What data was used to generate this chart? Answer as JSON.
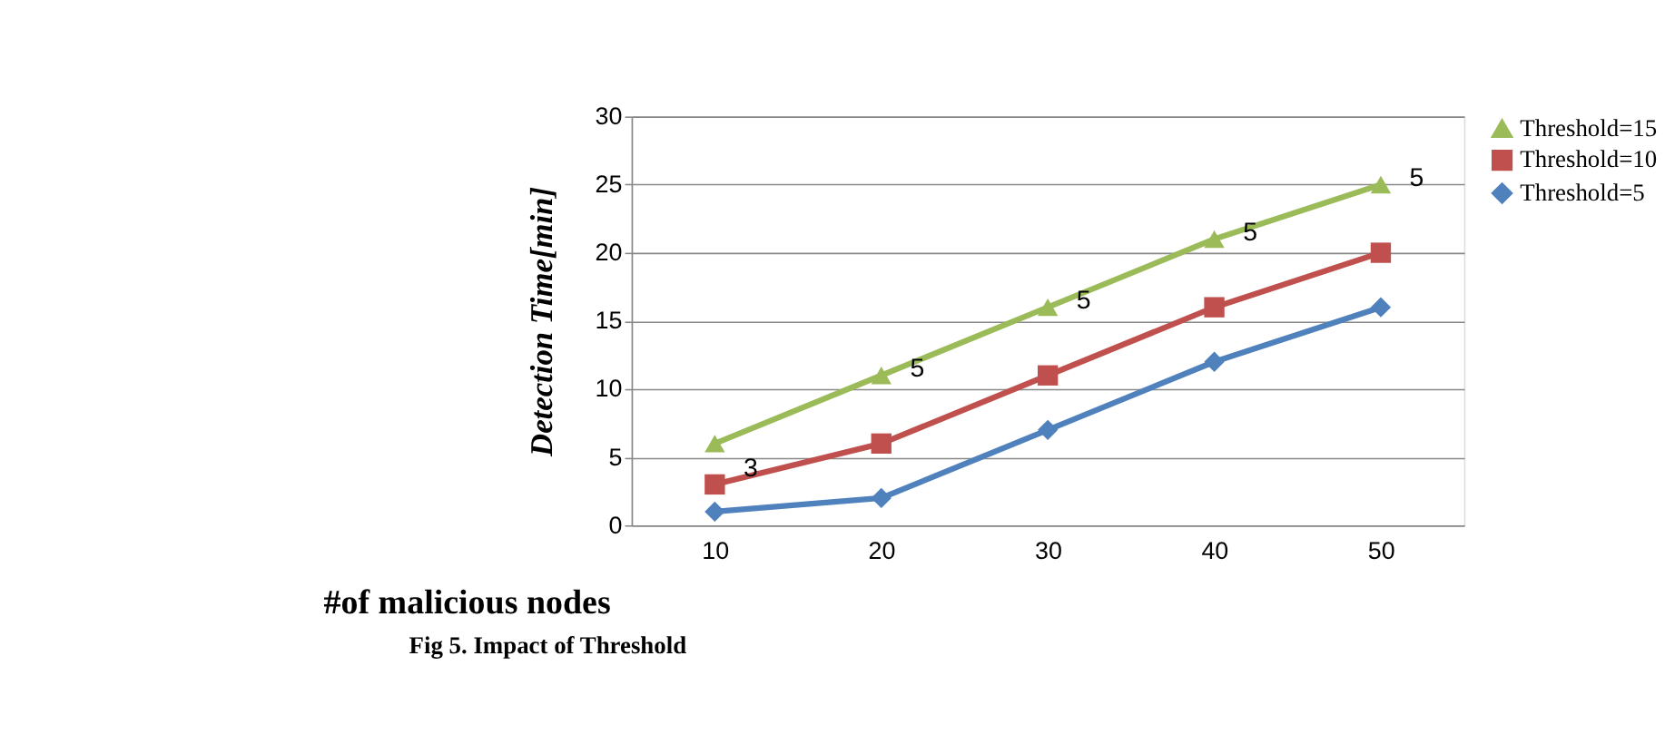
{
  "chart_data": {
    "type": "line",
    "title": "Fig 5. Impact of Threshold",
    "xlabel": "#of malicious nodes",
    "ylabel": "Detection Time[min]",
    "categories": [
      "10",
      "20",
      "30",
      "40",
      "50"
    ],
    "series": [
      {
        "name": "Threshold=15",
        "color": "#9bbb59",
        "marker": "triangle",
        "values": [
          6,
          11,
          16,
          21,
          25
        ]
      },
      {
        "name": "Threshold=10",
        "color": "#c0504d",
        "marker": "square",
        "values": [
          3,
          6,
          11,
          16,
          20
        ]
      },
      {
        "name": "Threshold=5",
        "color": "#4f81bd",
        "marker": "diamond",
        "values": [
          1,
          2,
          7,
          12,
          16
        ]
      }
    ],
    "annotations": [
      {
        "text": "3",
        "x": "10",
        "y": 3.7
      },
      {
        "text": "5",
        "x": "20",
        "y": 11
      },
      {
        "text": "5",
        "x": "30",
        "y": 16
      },
      {
        "text": "5",
        "x": "40",
        "y": 21
      },
      {
        "text": "5",
        "x": "50",
        "y": 25
      }
    ],
    "ylim": [
      0,
      30
    ],
    "yticks": [
      0,
      5,
      10,
      15,
      20,
      25,
      30
    ],
    "grid": "y",
    "legend": "right",
    "line_style": "solid"
  }
}
